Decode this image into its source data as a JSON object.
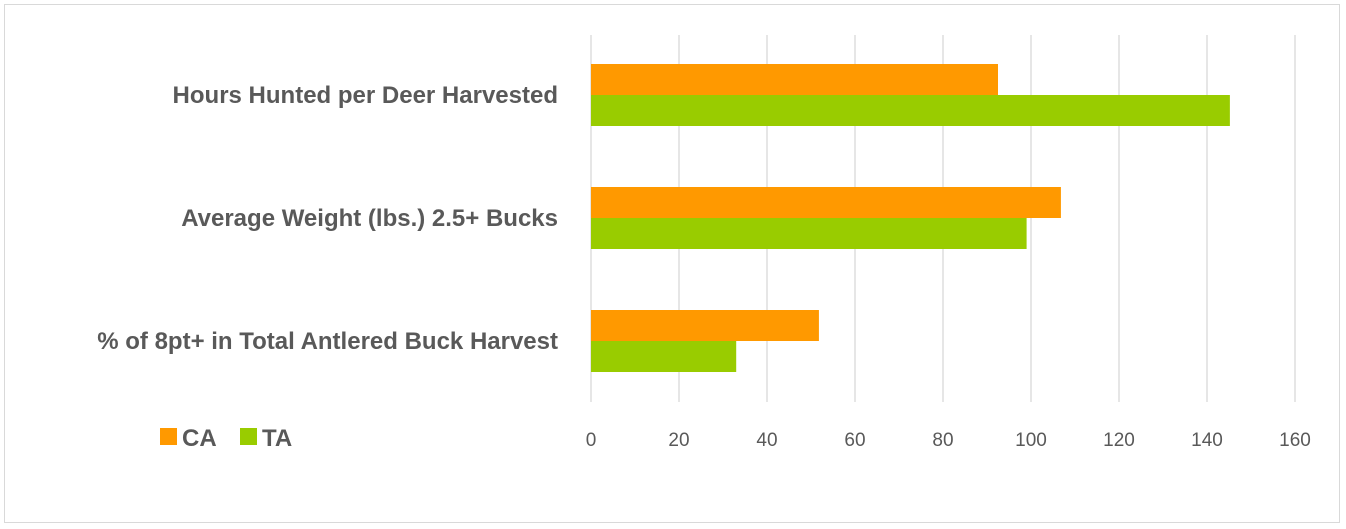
{
  "chart_data": {
    "type": "bar",
    "orientation": "horizontal",
    "categories": [
      "Hours Hunted per Deer Harvested",
      "Average Weight (lbs.) 2.5+ Bucks",
      "% of 8pt+ in Total Antlered Buck Harvest"
    ],
    "series": [
      {
        "name": "CA",
        "color": "#ff9900",
        "values": [
          92.5,
          106.8,
          51.8
        ]
      },
      {
        "name": "TA",
        "color": "#99cc00",
        "values": [
          145.2,
          99.0,
          33.0
        ]
      }
    ],
    "xlim": [
      0,
      160
    ],
    "xticks": [
      0,
      20,
      40,
      60,
      80,
      100,
      120,
      140,
      160
    ],
    "grid": true,
    "legend": "bottom-left",
    "title": "",
    "xlabel": "",
    "ylabel": ""
  }
}
